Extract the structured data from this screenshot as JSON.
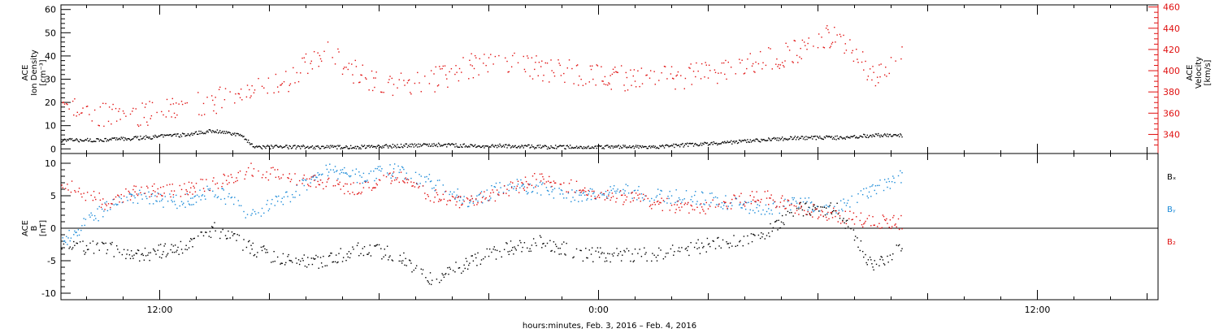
{
  "figure": {
    "xlabel": "hours:minutes, Feb.  3, 2016 – Feb.  4, 2016",
    "xticks": [
      {
        "hours": 12,
        "label": "12:00"
      },
      {
        "hours": 24,
        "label": "0:00"
      },
      {
        "hours": 36,
        "label": "12:00"
      }
    ],
    "xlim_hours": [
      9.3,
      39.3
    ]
  },
  "chart_data": [
    {
      "type": "scatter",
      "panel": "top",
      "ylabel_left": [
        "ACE",
        "Ion Density",
        "[cm⁻³]"
      ],
      "ylabel_right": [
        "ACE",
        "Velocity",
        "[km/s]"
      ],
      "ylim_left": [
        -2,
        62
      ],
      "ylim_right": [
        322,
        462
      ],
      "yticks_left": [
        0,
        10,
        20,
        30,
        40,
        50,
        60
      ],
      "yticks_right": [
        340,
        360,
        380,
        400,
        420,
        440,
        460
      ],
      "x_hours": [
        9.3,
        10.5,
        11.5,
        12.5,
        13.5,
        14.2,
        14.6,
        15.5,
        16.5,
        17.5,
        18.5,
        19.5,
        20.5,
        21.5,
        22.5,
        23.5,
        24.5,
        25.5,
        26.5,
        27.5,
        28.5,
        29.5,
        30.5,
        31.5,
        32.3
      ],
      "series": [
        {
          "axis": "left",
          "color": "#000000",
          "values": [
            4,
            4,
            5,
            6,
            8,
            6,
            1,
            1,
            1,
            1,
            1.5,
            2,
            1.5,
            1.5,
            1,
            1,
            1,
            1,
            2,
            3,
            4,
            5,
            5,
            6,
            6
          ]
        },
        {
          "axis": "right",
          "color": "#e01010",
          "values": [
            365,
            360,
            358,
            366,
            372,
            378,
            390,
            392,
            418,
            396,
            388,
            392,
            405,
            408,
            402,
            398,
            394,
            392,
            396,
            400,
            410,
            420,
            435,
            396,
            412
          ]
        }
      ]
    },
    {
      "type": "scatter",
      "panel": "bottom",
      "ylabel": [
        "ACE",
        "B",
        "[nT]"
      ],
      "ylim": [
        -11,
        11.5
      ],
      "yticks": [
        -10,
        -5,
        0,
        5,
        10
      ],
      "legend": [
        "Bₓ",
        "Bᵧ",
        "B₂"
      ],
      "legend_position": "right",
      "x_hours": [
        9.3,
        10.5,
        11.5,
        12.5,
        13.5,
        14.5,
        15.5,
        16.5,
        17.5,
        18.5,
        19.5,
        20.5,
        21.5,
        22.5,
        23.5,
        24.5,
        25.5,
        26.5,
        27.5,
        28.5,
        29.5,
        30.5,
        31.5,
        32.3
      ],
      "series": [
        {
          "color": "#000000",
          "values": [
            -3,
            -3,
            -4,
            -3,
            0,
            -3,
            -5,
            -5,
            -3,
            -4,
            -8,
            -5,
            -3,
            -2,
            -4,
            -4,
            -4,
            -3,
            -2,
            -1,
            3,
            3,
            -6,
            -3
          ]
        },
        {
          "color": "#1a8ad8",
          "values": [
            -2,
            3,
            5,
            4,
            6,
            2,
            5,
            9,
            8,
            9,
            7,
            4,
            7,
            6,
            5,
            6,
            5,
            5,
            4,
            3,
            4,
            3,
            6,
            8
          ]
        },
        {
          "color": "#e01010",
          "values": [
            7,
            4,
            6,
            6,
            7,
            9,
            8,
            7,
            6,
            8,
            5,
            4,
            6,
            8,
            6,
            5,
            4,
            3,
            4,
            5,
            3,
            2,
            1,
            1
          ]
        }
      ]
    }
  ]
}
